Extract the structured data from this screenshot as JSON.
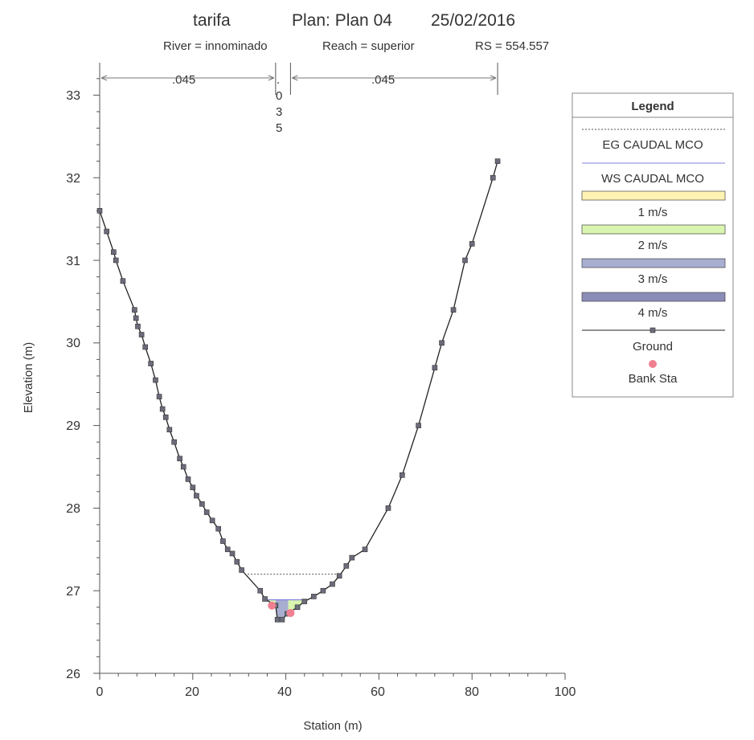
{
  "chart_data": {
    "type": "line",
    "title": {
      "project": "tarifa",
      "plan": "Plan: Plan 04",
      "date": "25/02/2016",
      "river": "River = innominado",
      "reach": "Reach = superior",
      "rs": "RS = 554.557"
    },
    "xlabel": "Station (m)",
    "ylabel": "Elevation (m)",
    "xlim": [
      0,
      100
    ],
    "ylim": [
      26,
      33.4
    ],
    "xticks": [
      "0",
      "20",
      "40",
      "60",
      "80",
      "100"
    ],
    "yticks": [
      "26",
      "27",
      "28",
      "29",
      "30",
      "31",
      "32",
      "33"
    ],
    "manning": {
      "left": ".045",
      "channel": [
        "0",
        "3",
        "5"
      ],
      "channel_dot": ".",
      "right": ".045"
    },
    "legend": {
      "title": "Legend",
      "entries": [
        {
          "label": "EG CAUDAL MCO",
          "kind": "dotted-line",
          "color": "#555555"
        },
        {
          "label": "WS CAUDAL MCO",
          "kind": "line",
          "color": "#7f7fdb"
        },
        {
          "label": "1 m/s",
          "kind": "fill",
          "color": "#fff3b3"
        },
        {
          "label": "2 m/s",
          "kind": "fill",
          "color": "#d9f5b0"
        },
        {
          "label": "3 m/s",
          "kind": "fill",
          "color": "#a8aed0"
        },
        {
          "label": "4 m/s",
          "kind": "fill",
          "color": "#8c8cb8"
        },
        {
          "label": "Ground",
          "kind": "ground",
          "color": "#222222"
        },
        {
          "label": "Bank Sta",
          "kind": "bank",
          "color": "#f08090"
        }
      ]
    },
    "series": [
      {
        "name": "Ground",
        "points": [
          [
            0,
            31.6
          ],
          [
            1.5,
            31.35
          ],
          [
            3,
            31.1
          ],
          [
            3.5,
            31.0
          ],
          [
            5,
            30.75
          ],
          [
            7.5,
            30.4
          ],
          [
            7.8,
            30.3
          ],
          [
            8.2,
            30.2
          ],
          [
            9,
            30.1
          ],
          [
            9.8,
            29.95
          ],
          [
            11,
            29.75
          ],
          [
            12,
            29.55
          ],
          [
            12.8,
            29.35
          ],
          [
            13.5,
            29.2
          ],
          [
            14.2,
            29.1
          ],
          [
            15,
            28.95
          ],
          [
            16,
            28.8
          ],
          [
            17.2,
            28.6
          ],
          [
            18,
            28.5
          ],
          [
            19,
            28.35
          ],
          [
            20,
            28.25
          ],
          [
            20.8,
            28.15
          ],
          [
            22,
            28.05
          ],
          [
            23,
            27.95
          ],
          [
            24.2,
            27.85
          ],
          [
            25.5,
            27.75
          ],
          [
            26.5,
            27.6
          ],
          [
            27.5,
            27.5
          ],
          [
            28.5,
            27.45
          ],
          [
            29.5,
            27.35
          ],
          [
            30.5,
            27.25
          ],
          [
            34.5,
            27.0
          ],
          [
            35.5,
            26.9
          ],
          [
            37.8,
            26.82
          ],
          [
            38.2,
            26.65
          ],
          [
            39.2,
            26.65
          ],
          [
            40.3,
            26.72
          ],
          [
            42.5,
            26.8
          ],
          [
            44,
            26.87
          ],
          [
            46,
            26.93
          ],
          [
            48,
            27.0
          ],
          [
            50,
            27.08
          ],
          [
            51.5,
            27.18
          ],
          [
            53,
            27.3
          ],
          [
            54.2,
            27.4
          ],
          [
            57,
            27.5
          ],
          [
            62,
            28.0
          ],
          [
            65,
            28.4
          ],
          [
            68.5,
            29.0
          ],
          [
            72,
            29.7
          ],
          [
            73.5,
            30.0
          ],
          [
            76,
            30.4
          ],
          [
            78.5,
            31.0
          ],
          [
            80,
            31.2
          ],
          [
            84.5,
            32.0
          ],
          [
            85.5,
            32.2
          ]
        ]
      }
    ],
    "eg_line": {
      "name": "EG CAUDAL MCO",
      "x": [
        31.8,
        52.0
      ],
      "y": 27.2
    },
    "ws_elevation": 26.89,
    "velocity_regions": [
      {
        "label": "2 m/s",
        "from_x": 35.8,
        "to_x": 37.8
      },
      {
        "label": "3 m/s",
        "from_x": 37.8,
        "to_x": 40.5
      },
      {
        "label": "2 m/s",
        "from_x": 40.5,
        "to_x": 44.2
      }
    ],
    "bank_stations": [
      [
        37.0,
        26.82
      ],
      [
        41.0,
        26.73
      ]
    ]
  }
}
